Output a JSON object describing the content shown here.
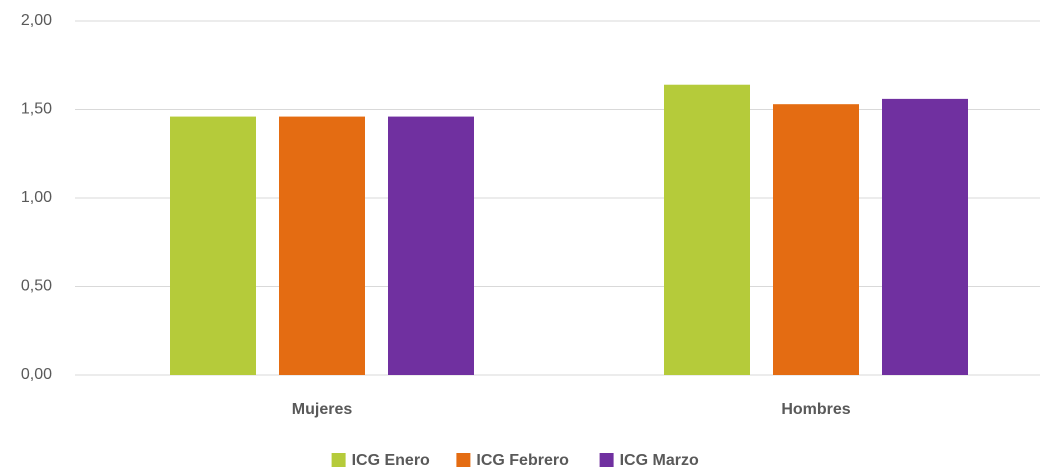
{
  "chart_data": {
    "type": "bar",
    "categories": [
      "Mujeres",
      "Hombres"
    ],
    "series": [
      {
        "name": "ICG Enero",
        "color": "#b5cb3a",
        "values": [
          1.46,
          1.64
        ]
      },
      {
        "name": "ICG Febrero",
        "color": "#e46c12",
        "values": [
          1.46,
          1.53
        ]
      },
      {
        "name": "ICG Marzo",
        "color": "#7030a0",
        "values": [
          1.46,
          1.56
        ]
      }
    ],
    "ylim": [
      0,
      2
    ],
    "yticks": [
      {
        "value": 0,
        "label": "0,00"
      },
      {
        "value": 0.5,
        "label": "0,50"
      },
      {
        "value": 1,
        "label": "1,00"
      },
      {
        "value": 1.5,
        "label": "1,50"
      },
      {
        "value": 2,
        "label": "2,00"
      }
    ],
    "grid": true,
    "legend": "bottom"
  }
}
